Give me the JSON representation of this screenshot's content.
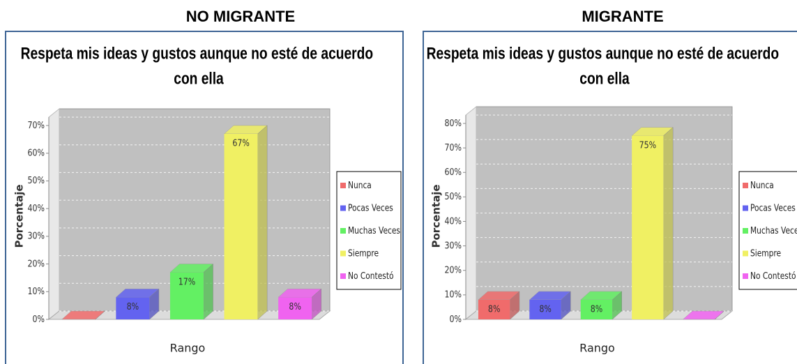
{
  "chart_data": [
    {
      "type": "bar",
      "heading": "NO MIGRANTE",
      "title": "Respeta mis ideas y gustos aunque no esté de acuerdo con ella",
      "ylabel": "Porcentaje",
      "xlabel": "Rango",
      "categories": [
        "Nunca",
        "Pocas Veces",
        "Muchas Veces",
        "Siempre",
        "No Contestó"
      ],
      "values": [
        0,
        8,
        17,
        67,
        8
      ],
      "value_labels": [
        null,
        "8%",
        "17%",
        "67%",
        "8%"
      ],
      "colors": [
        "#f06b6b",
        "#6363f0",
        "#63f063",
        "#f0f063",
        "#f063f0"
      ],
      "ylim": [
        0,
        70
      ],
      "yticks": [
        {
          "value": 0,
          "label": "0%"
        },
        {
          "value": 10,
          "label": "10%"
        },
        {
          "value": 20,
          "label": "20%"
        },
        {
          "value": 30,
          "label": "30%"
        },
        {
          "value": 40,
          "label": "40%"
        },
        {
          "value": 50,
          "label": "50%"
        },
        {
          "value": 60,
          "label": "60%"
        },
        {
          "value": 70,
          "label": "70%"
        }
      ],
      "grid": true,
      "legend": "right"
    },
    {
      "type": "bar",
      "heading": "MIGRANTE",
      "title": "Respeta mis ideas y gustos aunque no esté de acuerdo con ella",
      "ylabel": "Porcentaje",
      "xlabel": "Rango",
      "categories": [
        "Nunca",
        "Pocas Veces",
        "Muchas Veces",
        "Siempre",
        "No Contestó"
      ],
      "values": [
        8,
        8,
        8,
        75,
        0
      ],
      "value_labels": [
        "8%",
        "8%",
        "8%",
        "75%",
        null
      ],
      "colors": [
        "#f06b6b",
        "#6363f0",
        "#63f063",
        "#f0f063",
        "#f063f0"
      ],
      "ylim": [
        0,
        80
      ],
      "yticks": [
        {
          "value": 0,
          "label": "0%"
        },
        {
          "value": 10,
          "label": "10%"
        },
        {
          "value": 20,
          "label": "20%"
        },
        {
          "value": 30,
          "label": "30%"
        },
        {
          "value": 40,
          "label": "40%"
        },
        {
          "value": 50,
          "label": "50%"
        },
        {
          "value": 60,
          "label": "60%"
        },
        {
          "value": 70,
          "label": "70%"
        },
        {
          "value": 80,
          "label": "80%"
        }
      ],
      "grid": true,
      "legend": "right"
    }
  ]
}
